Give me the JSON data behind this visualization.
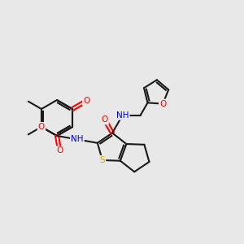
{
  "background_color": "#e8e8e8",
  "bond_color": "#1a1a1a",
  "atom_colors": {
    "O": "#ff0000",
    "N": "#0000cd",
    "S": "#ccaa00",
    "C": "#1a1a1a"
  },
  "font_size": 7.5
}
